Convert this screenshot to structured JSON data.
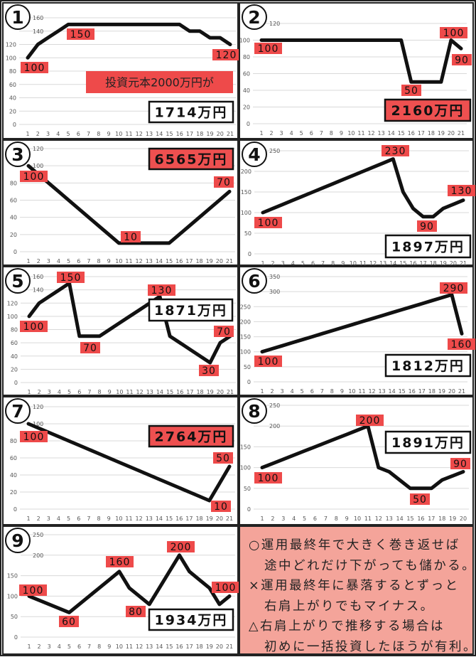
{
  "colors": {
    "line": "#111111",
    "label_fill": "#ee4a4a",
    "result_red": "#ee5050",
    "grid": "#d9d9d9",
    "note_bg": "#f4a49a"
  },
  "chart_data": [
    {
      "type": "line",
      "panel_number": "1",
      "categories": [
        "1",
        "2",
        "3",
        "4",
        "5",
        "6",
        "7",
        "8",
        "9",
        "10",
        "11",
        "12",
        "13",
        "14",
        "15",
        "16",
        "17",
        "18",
        "19",
        "20",
        "21"
      ],
      "values": [
        100,
        120,
        130,
        140,
        150,
        150,
        150,
        150,
        150,
        150,
        150,
        150,
        150,
        150,
        150,
        150,
        140,
        140,
        130,
        130,
        120
      ],
      "ylim": [
        0,
        160
      ],
      "ystep": 20,
      "yticks": [
        "0",
        "20",
        "40",
        "60",
        "80",
        "100",
        "120",
        "140",
        "160"
      ],
      "annotations": [
        {
          "x": 5,
          "text": "150"
        },
        {
          "x": 1,
          "text": "100"
        },
        {
          "x": 21,
          "text": "120"
        }
      ],
      "caption": "投資元本2000万円が",
      "result": "1714万円",
      "result_style": "white"
    },
    {
      "type": "line",
      "panel_number": "2",
      "categories": [
        "1",
        "2",
        "3",
        "4",
        "5",
        "6",
        "7",
        "8",
        "9",
        "10",
        "11",
        "12",
        "13",
        "14",
        "15",
        "16",
        "17",
        "18",
        "19",
        "20",
        "21"
      ],
      "values": [
        100,
        100,
        100,
        100,
        100,
        100,
        100,
        100,
        100,
        100,
        100,
        100,
        100,
        100,
        100,
        50,
        50,
        50,
        50,
        100,
        90
      ],
      "ylim": [
        0,
        120
      ],
      "ystep": 20,
      "yticks": [
        "0",
        "20",
        "40",
        "60",
        "80",
        "100",
        "120"
      ],
      "annotations": [
        {
          "x": 1,
          "text": "100"
        },
        {
          "x": 16,
          "text": "50"
        },
        {
          "x": 20,
          "text": "100"
        },
        {
          "x": 21,
          "text": "90"
        }
      ],
      "result": "2160万円",
      "result_style": "red"
    },
    {
      "type": "line",
      "panel_number": "3",
      "categories": [
        "1",
        "2",
        "3",
        "4",
        "5",
        "6",
        "7",
        "8",
        "9",
        "10",
        "11",
        "12",
        "13",
        "14",
        "15",
        "16",
        "17",
        "18",
        "19",
        "20",
        "21"
      ],
      "values": [
        100,
        90,
        80,
        70,
        60,
        50,
        40,
        30,
        20,
        10,
        10,
        10,
        10,
        10,
        10,
        20,
        30,
        40,
        50,
        60,
        70
      ],
      "ylim": [
        0,
        120
      ],
      "ystep": 20,
      "yticks": [
        "0",
        "20",
        "40",
        "60",
        "80",
        "100",
        "120"
      ],
      "annotations": [
        {
          "x": 1,
          "text": "100"
        },
        {
          "x": 10,
          "text": "10"
        },
        {
          "x": 21,
          "text": "70"
        }
      ],
      "result": "6565万円",
      "result_style": "red"
    },
    {
      "type": "line",
      "panel_number": "4",
      "categories": [
        "1",
        "2",
        "3",
        "4",
        "5",
        "6",
        "7",
        "8",
        "9",
        "10",
        "11",
        "12",
        "13",
        "14",
        "15",
        "16",
        "17",
        "18",
        "19",
        "20",
        "21"
      ],
      "values": [
        100,
        110,
        120,
        130,
        140,
        150,
        160,
        170,
        180,
        190,
        200,
        210,
        220,
        230,
        150,
        110,
        90,
        90,
        110,
        120,
        130
      ],
      "ylim": [
        0,
        250
      ],
      "ystep": 50,
      "yticks": [
        "0",
        "50",
        "100",
        "150",
        "200",
        "250"
      ],
      "annotations": [
        {
          "x": 14,
          "text": "230"
        },
        {
          "x": 1,
          "text": "100"
        },
        {
          "x": 17,
          "text": "90"
        },
        {
          "x": 21,
          "text": "130"
        }
      ],
      "result": "1897万円",
      "result_style": "white"
    },
    {
      "type": "line",
      "panel_number": "5",
      "categories": [
        "1",
        "2",
        "3",
        "4",
        "5",
        "6",
        "7",
        "8",
        "9",
        "10",
        "11",
        "12",
        "13",
        "14",
        "15",
        "16",
        "17",
        "18",
        "19",
        "20",
        "21"
      ],
      "values": [
        100,
        120,
        130,
        140,
        150,
        70,
        70,
        70,
        80,
        90,
        100,
        110,
        120,
        130,
        70,
        60,
        50,
        40,
        30,
        60,
        70
      ],
      "ylim": [
        0,
        160
      ],
      "ystep": 20,
      "yticks": [
        "0",
        "20",
        "40",
        "60",
        "80",
        "100",
        "120",
        "140",
        "160"
      ],
      "annotations": [
        {
          "x": 5,
          "text": "150"
        },
        {
          "x": 1,
          "text": "100"
        },
        {
          "x": 7,
          "text": "70"
        },
        {
          "x": 14,
          "text": "130"
        },
        {
          "x": 19,
          "text": "30"
        },
        {
          "x": 21,
          "text": "70"
        }
      ],
      "result": "1871万円",
      "result_style": "white"
    },
    {
      "type": "line",
      "panel_number": "6",
      "categories": [
        "1",
        "2",
        "3",
        "4",
        "5",
        "6",
        "7",
        "8",
        "9",
        "10",
        "11",
        "12",
        "13",
        "14",
        "15",
        "16",
        "17",
        "18",
        "19",
        "20",
        "21"
      ],
      "values": [
        100,
        110,
        120,
        130,
        140,
        150,
        160,
        170,
        180,
        190,
        200,
        210,
        220,
        230,
        240,
        250,
        260,
        270,
        280,
        290,
        160
      ],
      "ylim": [
        0,
        350
      ],
      "ystep": 50,
      "yticks": [
        "0",
        "50",
        "100",
        "150",
        "200",
        "250",
        "300",
        "350"
      ],
      "annotations": [
        {
          "x": 20,
          "text": "290"
        },
        {
          "x": 1,
          "text": "100"
        },
        {
          "x": 21,
          "text": "160"
        }
      ],
      "result": "1812万円",
      "result_style": "white"
    },
    {
      "type": "line",
      "panel_number": "7",
      "categories": [
        "1",
        "2",
        "3",
        "4",
        "5",
        "6",
        "7",
        "8",
        "9",
        "10",
        "11",
        "12",
        "13",
        "14",
        "15",
        "16",
        "17",
        "18",
        "19",
        "20",
        "21"
      ],
      "values": [
        100,
        95,
        90,
        85,
        80,
        75,
        70,
        65,
        60,
        55,
        50,
        45,
        40,
        35,
        30,
        25,
        20,
        15,
        10,
        30,
        50
      ],
      "ylim": [
        0,
        120
      ],
      "ystep": 20,
      "yticks": [
        "0",
        "20",
        "40",
        "60",
        "80",
        "100",
        "120"
      ],
      "annotations": [
        {
          "x": 1,
          "text": "100"
        },
        {
          "x": 21,
          "text": "50"
        },
        {
          "x": 19,
          "text": "10"
        }
      ],
      "result": "2764万円",
      "result_style": "red"
    },
    {
      "type": "line",
      "panel_number": "8",
      "categories": [
        "1",
        "2",
        "3",
        "4",
        "5",
        "6",
        "7",
        "8",
        "9",
        "10",
        "11",
        "12",
        "13",
        "14",
        "15",
        "16",
        "17",
        "18",
        "19",
        "20"
      ],
      "values": [
        100,
        110,
        120,
        130,
        140,
        150,
        160,
        170,
        180,
        190,
        200,
        100,
        90,
        70,
        50,
        50,
        50,
        70,
        80,
        90
      ],
      "ylim": [
        0,
        250
      ],
      "ystep": 50,
      "yticks": [
        "0",
        "50",
        "100",
        "150",
        "200",
        "250"
      ],
      "annotations": [
        {
          "x": 11,
          "text": "200"
        },
        {
          "x": 1,
          "text": "100"
        },
        {
          "x": 16,
          "text": "50"
        },
        {
          "x": 20,
          "text": "90"
        }
      ],
      "result": "1891万円",
      "result_style": "white"
    },
    {
      "type": "line",
      "panel_number": "9",
      "categories": [
        "1",
        "2",
        "3",
        "4",
        "5",
        "6",
        "7",
        "8",
        "9",
        "10",
        "11",
        "12",
        "13",
        "14",
        "15",
        "16",
        "17",
        "18",
        "19",
        "20",
        "21"
      ],
      "values": [
        100,
        90,
        80,
        70,
        60,
        80,
        100,
        120,
        140,
        160,
        120,
        100,
        80,
        120,
        160,
        200,
        160,
        140,
        120,
        80,
        100
      ],
      "ylim": [
        0,
        250
      ],
      "ystep": 50,
      "yticks": [
        "0",
        "50",
        "100",
        "150",
        "200",
        "250"
      ],
      "annotations": [
        {
          "x": 1,
          "text": "100"
        },
        {
          "x": 5,
          "text": "60"
        },
        {
          "x": 10,
          "text": "160"
        },
        {
          "x": 13,
          "text": "80"
        },
        {
          "x": 16,
          "text": "200"
        },
        {
          "x": 21,
          "text": "100"
        }
      ],
      "result": "1934万円",
      "result_style": "white"
    }
  ],
  "note": {
    "lines": [
      "○運用最終年で大きく巻き返せば",
      "途中どれだけ下がっても儲かる。",
      "×運用最終年に暴落するとずっと",
      "右肩上がりでもマイナス。",
      "△右肩上がりで推移する場合は",
      "初めに一括投資したほうが有利。"
    ]
  }
}
